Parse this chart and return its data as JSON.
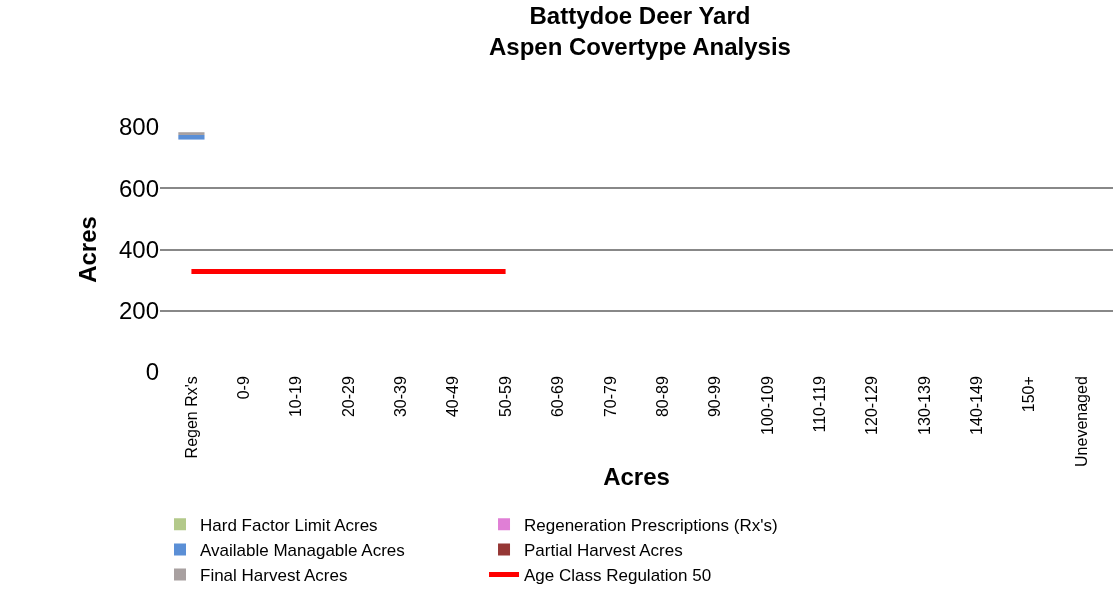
{
  "chart_data": {
    "type": "bar",
    "title": "Battydoe Deer Yard\nAspen Covertype Analysis",
    "xlabel": "Acres",
    "ylabel": "Acres",
    "categories": [
      "Regen Rx's",
      "0-9",
      "10-19",
      "20-29",
      "30-39",
      "40-49",
      "50-59",
      "60-69",
      "70-79",
      "80-89",
      "90-99",
      "100-109",
      "110-119",
      "120-129",
      "130-139",
      "140-149",
      "150+",
      "Unevenaged"
    ],
    "series": [
      {
        "name": "Hard Factor Limit Acres",
        "color": "#b3c98a",
        "values": [
          null,
          null,
          null,
          null,
          null,
          null,
          null,
          null,
          null,
          null,
          null,
          null,
          null,
          null,
          null,
          null,
          null,
          null
        ]
      },
      {
        "name": "Regeneration Prescriptions (Rx's)",
        "color": "#e07fd6",
        "values": [
          null,
          null,
          null,
          null,
          null,
          null,
          null,
          null,
          null,
          null,
          null,
          null,
          null,
          null,
          null,
          null,
          null,
          null
        ]
      },
      {
        "name": "Available Managable Acres",
        "color": "#5b8fd6",
        "base": [
          759,
          null,
          null,
          null,
          null,
          null,
          null,
          null,
          null,
          null,
          null,
          null,
          null,
          null,
          null,
          null,
          null,
          null
        ],
        "values": [
          15,
          null,
          null,
          null,
          null,
          null,
          null,
          null,
          null,
          null,
          null,
          null,
          null,
          null,
          null,
          null,
          null,
          null
        ]
      },
      {
        "name": "Partial Harvest Acres",
        "color": "#953735",
        "values": [
          null,
          null,
          null,
          null,
          null,
          null,
          null,
          null,
          null,
          null,
          null,
          null,
          null,
          null,
          null,
          null,
          null,
          null
        ]
      },
      {
        "name": "Final Harvest Acres",
        "color": "#a8a0a0",
        "base": [
          774,
          null,
          null,
          null,
          null,
          null,
          null,
          null,
          null,
          null,
          null,
          null,
          null,
          null,
          null,
          null,
          null,
          null
        ],
        "values": [
          9,
          null,
          null,
          null,
          null,
          null,
          null,
          null,
          null,
          null,
          null,
          null,
          null,
          null,
          null,
          null,
          null,
          null
        ]
      },
      {
        "name": "Age Class Regulation 50",
        "type": "line",
        "color": "#ff0000",
        "values": [
          328,
          328,
          328,
          328,
          328,
          328,
          328,
          null,
          null,
          null,
          null,
          null,
          null,
          null,
          null,
          null,
          null,
          null
        ]
      }
    ],
    "ylim": [
      0,
      800
    ],
    "yticks": [
      0,
      200,
      400,
      600,
      800
    ],
    "grid": "y",
    "legend": "bottom"
  }
}
